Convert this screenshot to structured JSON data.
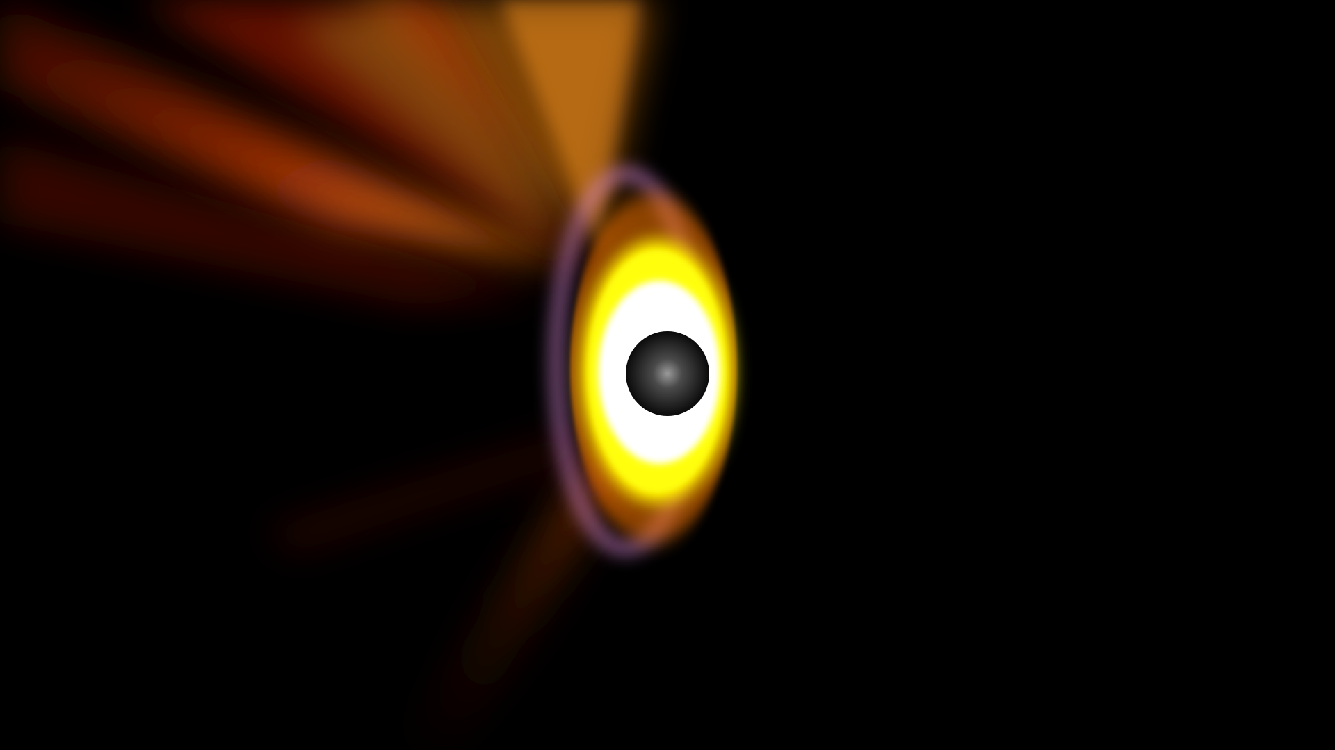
{
  "scene": {
    "colors": {
      "background": "#000000",
      "core": "#ffffff",
      "inner_glow": "#ffff00",
      "outer_glow": "#ff9900",
      "halo": "#d98ad9",
      "ray_red": "#b31a00",
      "ray_orange": "#e07a10",
      "ray_olive": "#b8a020",
      "center_dark": "#0a0a0a",
      "center_light": "#9a9a9a"
    }
  }
}
